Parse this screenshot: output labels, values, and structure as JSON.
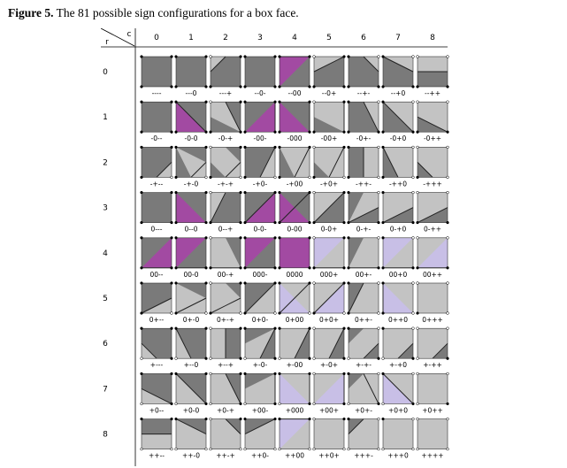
{
  "caption": {
    "label": "Figure 5.",
    "text": " The 81 possible sign configurations for a box face."
  },
  "axes": {
    "row_letter": "r",
    "col_letter": "c"
  },
  "col_labels": [
    "0",
    "1",
    "2",
    "3",
    "4",
    "5",
    "6",
    "7",
    "8"
  ],
  "row_labels": [
    "0",
    "1",
    "2",
    "3",
    "4",
    "5",
    "6",
    "7",
    "8"
  ],
  "colors": {
    "dark": "#7a7a7a",
    "light": "#c3c3c3",
    "magenta": "#a24aa2",
    "lavender": "#c8bfe6",
    "edge": "#222222"
  },
  "configs": [
    [
      "----",
      "---0",
      "---+",
      "--0-",
      "--00",
      "--0+",
      "--+-",
      "--+0",
      "--++"
    ],
    [
      "-0--",
      "-0-0",
      "-0-+",
      "-00-",
      "-000",
      "-00+",
      "-0+-",
      "-0+0",
      "-0++"
    ],
    [
      "-+--",
      "-+-0",
      "-+-+",
      "-+0-",
      "-+00",
      "-+0+",
      "-++-",
      "-++0",
      "-+++"
    ],
    [
      "0---",
      "0--0",
      "0--+",
      "0-0-",
      "0-00",
      "0-0+",
      "0-+-",
      "0-+0",
      "0-++"
    ],
    [
      "00--",
      "00-0",
      "00-+",
      "000-",
      "0000",
      "000+",
      "00+-",
      "00+0",
      "00++"
    ],
    [
      "0+--",
      "0+-0",
      "0+-+",
      "0+0-",
      "0+00",
      "0+0+",
      "0++-",
      "0++0",
      "0+++"
    ],
    [
      "+---",
      "+--0",
      "+--+",
      "+-0-",
      "+-00",
      "+-0+",
      "+-+-",
      "+-+0",
      "+-++"
    ],
    [
      "+0--",
      "+0-0",
      "+0-+",
      "+00-",
      "+000",
      "+00+",
      "+0+-",
      "+0+0",
      "+0++"
    ],
    [
      "++--",
      "++-0",
      "++-+",
      "++0-",
      "++00",
      "++0+",
      "+++-",
      "+++0",
      "++++"
    ]
  ]
}
